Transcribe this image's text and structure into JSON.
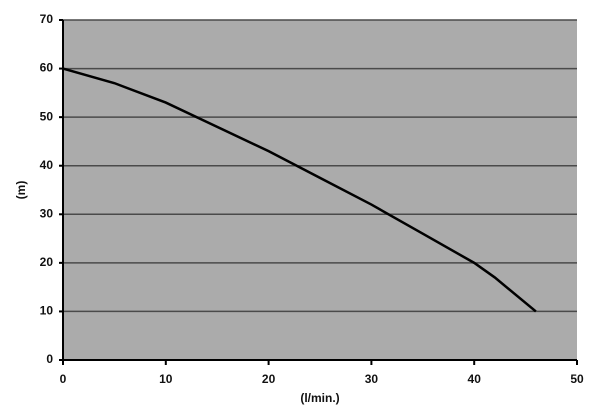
{
  "chart_data": {
    "type": "line",
    "x_label": "(l/min.)",
    "y_label": "(m)",
    "x": [
      0,
      5,
      10,
      15,
      20,
      25,
      30,
      35,
      40,
      42,
      46
    ],
    "series": [
      {
        "color": "#000000",
        "values": [
          60,
          57,
          53,
          48,
          43,
          37.5,
          32,
          26,
          20,
          17,
          10
        ]
      }
    ],
    "xlim": [
      0,
      50
    ],
    "xticks": [
      0,
      10,
      20,
      30,
      40,
      50
    ],
    "ylim": [
      0,
      70
    ],
    "yticks": [
      0,
      10,
      20,
      30,
      40,
      50,
      60,
      70
    ],
    "grid": true,
    "plot_color": "#ababab",
    "grid_color": "#4a4a4a"
  }
}
